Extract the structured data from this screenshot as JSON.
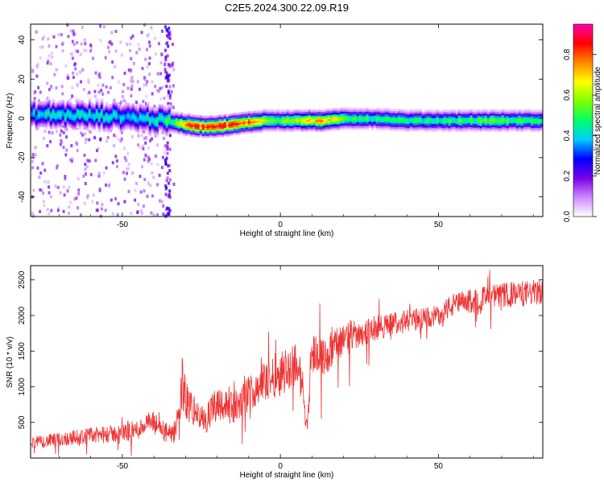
{
  "figure": {
    "title": "C2E5.2024.300.22.09.R19"
  },
  "chart_data": [
    {
      "type": "heatmap",
      "xlabel": "Height of straight line (km)",
      "ylabel": "Frequency (Hz)",
      "xlim": [
        -79,
        83
      ],
      "ylim": [
        -50,
        48
      ],
      "xticks": [
        -50,
        0,
        50
      ],
      "yticks": [
        -40,
        -20,
        0,
        20,
        40
      ],
      "colorbar": {
        "label": "Normalized spectral amplitude",
        "range": [
          0,
          0.95
        ],
        "ticks": [
          0.0,
          0.2,
          0.4,
          0.6,
          0.8
        ],
        "tick_labels": [
          "0.0",
          "0.2",
          "0.4",
          "0.6",
          "0.8"
        ],
        "colormap": [
          "#ffffff",
          "#cc88ff",
          "#7a00e6",
          "#0000ff",
          "#00ccff",
          "#00ff66",
          "#80ff00",
          "#ffff00",
          "#ff8800",
          "#ff0000",
          "#ff00aa"
        ]
      },
      "ridge": {
        "x": [
          -79,
          -70,
          -60,
          -50,
          -42,
          -37,
          -33,
          -30,
          -25,
          -20,
          -15,
          -10,
          -5,
          0,
          5,
          10,
          15,
          20,
          30,
          40,
          50,
          60,
          70,
          83
        ],
        "frequency": [
          2,
          2,
          1.5,
          1,
          0,
          -1,
          -2,
          -3,
          -4,
          -4,
          -3,
          -2,
          -1,
          -1,
          -1,
          -1,
          -1,
          0,
          0,
          -1,
          -1,
          -1,
          -1,
          -1
        ],
        "amplitude": [
          0.4,
          0.45,
          0.45,
          0.42,
          0.45,
          0.5,
          0.55,
          0.85,
          0.9,
          0.92,
          0.88,
          0.85,
          0.7,
          0.6,
          0.7,
          0.75,
          0.8,
          0.55,
          0.5,
          0.5,
          0.5,
          0.55,
          0.55,
          0.5
        ]
      }
    },
    {
      "type": "line",
      "xlabel": "Height of straight line (km)",
      "ylabel": "SNR (10 * v/v)",
      "xlim": [
        -79,
        83
      ],
      "ylim": [
        0,
        2700
      ],
      "xticks": [
        -50,
        0,
        50
      ],
      "yticks": [
        500,
        1000,
        1500,
        2000,
        2500
      ],
      "color": "#ee3333",
      "series": [
        {
          "x": [
            -79,
            -75,
            -70,
            -65,
            -60,
            -55,
            -50,
            -45,
            -42,
            -40,
            -38,
            -36,
            -34,
            -32,
            -31,
            -30,
            -28,
            -26,
            -24,
            -22,
            -20,
            -18,
            -16,
            -14,
            -12,
            -10,
            -8,
            -6,
            -4,
            -2,
            0,
            2,
            4,
            5,
            6,
            7,
            8,
            8.5,
            9,
            9.5,
            10,
            12,
            14,
            16,
            18,
            20,
            25,
            30,
            35,
            40,
            45,
            48,
            50,
            52,
            55,
            60,
            65,
            70,
            75,
            80,
            83
          ],
          "y": [
            220,
            230,
            260,
            290,
            310,
            330,
            350,
            400,
            500,
            480,
            420,
            350,
            300,
            600,
            1100,
            800,
            700,
            600,
            500,
            650,
            800,
            760,
            700,
            720,
            800,
            900,
            1000,
            1050,
            1100,
            1150,
            1200,
            1250,
            1300,
            1350,
            1200,
            1000,
            550,
            450,
            800,
            1300,
            1450,
            1500,
            1400,
            1500,
            1600,
            1700,
            1750,
            1820,
            1880,
            1920,
            1960,
            1980,
            2000,
            2080,
            2150,
            2200,
            2250,
            2280,
            2300,
            2320,
            2330
          ],
          "noise": [
            80,
            90,
            100,
            110,
            120,
            120,
            130,
            140,
            150,
            170,
            160,
            150,
            140,
            200,
            400,
            300,
            250,
            220,
            200,
            220,
            260,
            240,
            220,
            230,
            240,
            260,
            280,
            300,
            300,
            310,
            320,
            320,
            320,
            330,
            300,
            260,
            130,
            100,
            200,
            330,
            300,
            280,
            260,
            260,
            240,
            230,
            200,
            180,
            170,
            160,
            150,
            150,
            150,
            160,
            170,
            170,
            170,
            180,
            180,
            180,
            180
          ]
        }
      ]
    }
  ]
}
